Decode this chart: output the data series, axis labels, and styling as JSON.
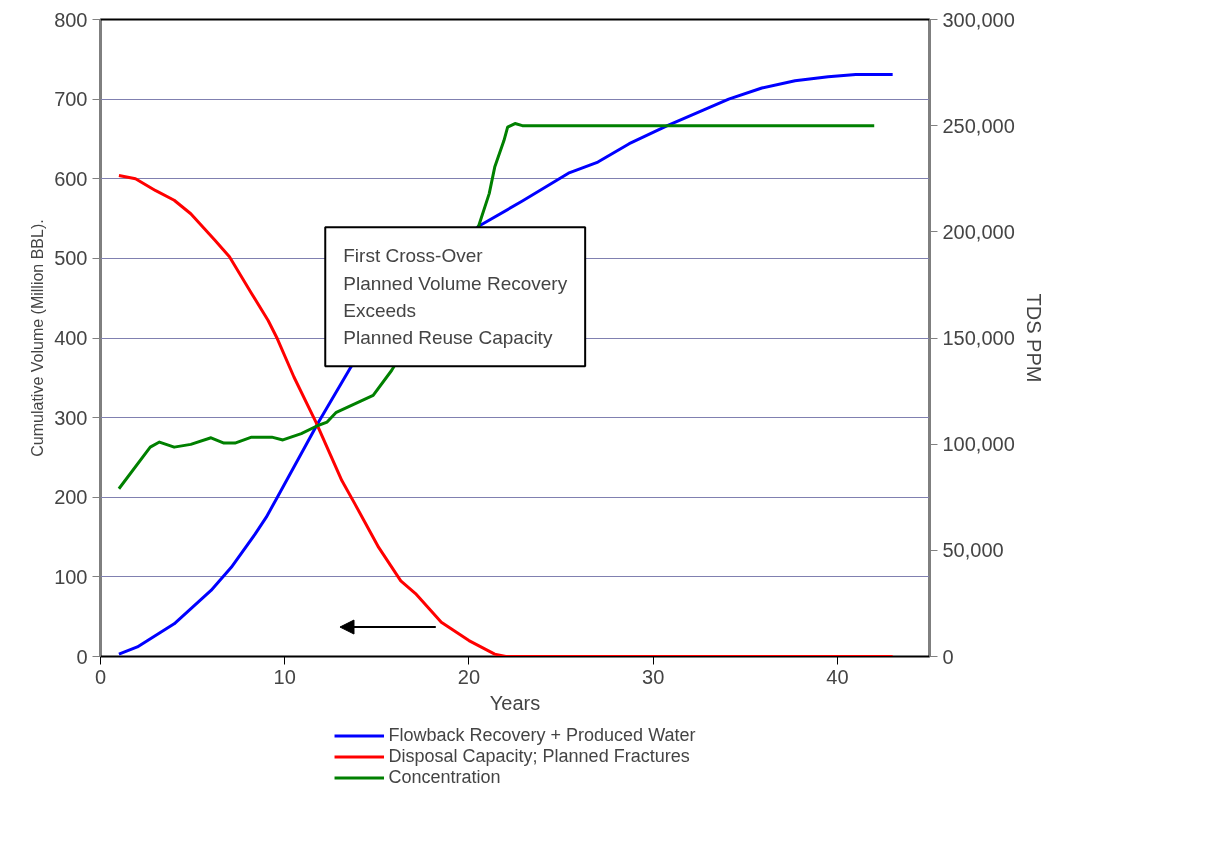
{
  "chart_data": {
    "type": "line",
    "xlabel": "Years",
    "ylabel": "Cumulative Volume (Million BBL).",
    "y2label": "TDS PPM",
    "xlim": [
      0,
      45
    ],
    "xticks": [
      0,
      10,
      20,
      30,
      40
    ],
    "ylim": [
      0,
      800
    ],
    "yticks": [
      0,
      100,
      200,
      300,
      400,
      500,
      600,
      700,
      800
    ],
    "y2lim": [
      0,
      300000
    ],
    "y2ticks": [
      {
        "value": 0,
        "label": "0"
      },
      {
        "value": 50000,
        "label": "50,000"
      },
      {
        "value": 100000,
        "label": "100,000"
      },
      {
        "value": 150000,
        "label": "150,000"
      },
      {
        "value": 200000,
        "label": "200,000"
      },
      {
        "value": 250000,
        "label": "250,000"
      },
      {
        "value": 300000,
        "label": "300,000"
      }
    ],
    "grid": "y",
    "legend": "bottom",
    "marker": "none",
    "line_style": "solid",
    "annotations": [
      "First Cross-Over\nPlanned Volume Recovery\nExceeds\nPlanned Reuse Capacity"
    ],
    "series": [
      {
        "name": "Flowback Recovery + Produced Water",
        "color": "#0000ff",
        "x": [
          1,
          2,
          4,
          6,
          7.1,
          8.4,
          9,
          9.6,
          11.8,
          13.6,
          20.5,
          22.9,
          25.4,
          27,
          28.7,
          30.8,
          34.1,
          35.9,
          37.7,
          39.5,
          41,
          43
        ],
        "values": [
          3,
          12,
          41,
          83,
          112,
          154,
          175,
          200,
          293,
          364,
          540,
          572,
          607,
          621,
          644,
          667,
          700,
          714,
          723,
          728,
          731,
          731
        ]
      },
      {
        "name": "Disposal Capacity; Planned Fractures",
        "color": "#ff0000",
        "x": [
          1,
          1.9,
          3,
          4,
          4.9,
          6.2,
          7,
          8.2,
          9.1,
          9.6,
          10.5,
          11.7,
          13.1,
          13.8,
          15.1,
          16.3,
          17.1,
          18.5,
          20,
          21.4,
          22,
          43
        ],
        "values": [
          604,
          600,
          585,
          573,
          556,
          523,
          502,
          456,
          422,
          399,
          351,
          294,
          221,
          192,
          137,
          95,
          79,
          43,
          20,
          3,
          0,
          0
        ]
      },
      {
        "name": "Concentration",
        "color": "#008000",
        "axis": "y2",
        "x": [
          1,
          2.7,
          3.2,
          4,
          4.9,
          6,
          6.7,
          7.3,
          8.2,
          9.3,
          9.9,
          10.9,
          11.8,
          12.3,
          12.8,
          13.8,
          14.8,
          15.8,
          20.5,
          21.1,
          21.4,
          21.9,
          22.1,
          22.5,
          22.9,
          42
        ],
        "values": [
          79000,
          98600,
          101000,
          98600,
          99900,
          103000,
          100500,
          100500,
          103300,
          103300,
          102000,
          105000,
          108800,
          110400,
          115000,
          119000,
          123000,
          134700,
          202000,
          218000,
          230500,
          243000,
          249300,
          251000,
          250000,
          250000
        ]
      }
    ]
  }
}
